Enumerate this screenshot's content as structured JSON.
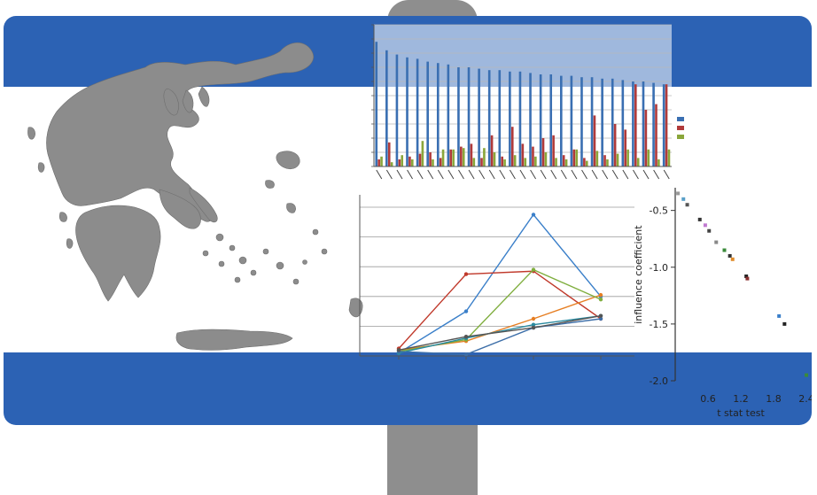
{
  "sign": {
    "colors": {
      "blue": "#2c62b4",
      "white": "#ffffff",
      "pole": "#8e8e8e",
      "land": "#8c8c8c"
    },
    "map_icon": "greece-map-icon"
  },
  "bar_chart": {
    "type": "bar",
    "grid": true,
    "legend_position": "right",
    "legend": [
      "",
      "",
      ""
    ],
    "series_colors": [
      "#3a6fb2",
      "#b03a3a",
      "#8aa63a"
    ],
    "ylim": [
      0,
      1
    ],
    "categories_count": 29,
    "series": [
      {
        "values": [
          0.88,
          0.82,
          0.79,
          0.77,
          0.76,
          0.74,
          0.73,
          0.72,
          0.7,
          0.7,
          0.69,
          0.68,
          0.68,
          0.67,
          0.67,
          0.66,
          0.65,
          0.65,
          0.64,
          0.64,
          0.63,
          0.63,
          0.62,
          0.62,
          0.61,
          0.6,
          0.6,
          0.59,
          0.58
        ]
      },
      {
        "values": [
          0.05,
          0.17,
          0.05,
          0.07,
          0.09,
          0.1,
          0.06,
          0.12,
          0.14,
          0.16,
          0.06,
          0.22,
          0.07,
          0.28,
          0.16,
          0.14,
          0.2,
          0.22,
          0.08,
          0.12,
          0.06,
          0.36,
          0.08,
          0.3,
          0.26,
          0.58,
          0.4,
          0.44,
          0.58
        ]
      },
      {
        "values": [
          0.07,
          0.03,
          0.08,
          0.05,
          0.18,
          0.05,
          0.12,
          0.12,
          0.13,
          0.06,
          0.13,
          0.1,
          0.05,
          0.08,
          0.06,
          0.07,
          0.1,
          0.06,
          0.05,
          0.12,
          0.04,
          0.11,
          0.05,
          0.09,
          0.12,
          0.06,
          0.12,
          0.05,
          0.12
        ]
      }
    ]
  },
  "line_chart": {
    "type": "line",
    "grid": true,
    "x_points": 4,
    "ylim": [
      0,
      1
    ],
    "series": [
      {
        "color": "#3a7fc9",
        "values": [
          0.02,
          0.3,
          0.95,
          0.4
        ]
      },
      {
        "color": "#c0392b",
        "values": [
          0.05,
          0.55,
          0.57,
          0.25
        ]
      },
      {
        "color": "#e67e22",
        "values": [
          0.04,
          0.1,
          0.25,
          0.41
        ]
      },
      {
        "color": "#7fae3e",
        "values": [
          0.03,
          0.11,
          0.58,
          0.38
        ]
      },
      {
        "color": "#2a8aa0",
        "values": [
          0.02,
          0.12,
          0.21,
          0.27
        ]
      },
      {
        "color": "#3c6ea8",
        "values": [
          0.03,
          0.01,
          0.19,
          0.25
        ]
      },
      {
        "color": "#555555",
        "values": [
          0.04,
          0.13,
          0.19,
          0.27
        ]
      }
    ]
  },
  "scatter_chart": {
    "type": "scatter",
    "ylabel": "influence coefficient",
    "xlabel": "t stat test",
    "yticks": [
      "-0.5",
      "-1.0",
      "-1.5",
      "-2.0"
    ],
    "xticks": [
      "0.6",
      "1.2",
      "1.8",
      "2.4"
    ],
    "xlim": [
      0,
      2.4
    ],
    "ylim": [
      -2.0,
      -0.3
    ],
    "points": [
      {
        "x": 0.05,
        "y": -0.35,
        "color": "#999999"
      },
      {
        "x": 0.15,
        "y": -0.4,
        "color": "#5aa0c8"
      },
      {
        "x": 0.22,
        "y": -0.45,
        "color": "#555555"
      },
      {
        "x": 0.45,
        "y": -0.58,
        "color": "#333333"
      },
      {
        "x": 0.55,
        "y": -0.63,
        "color": "#c07ad0"
      },
      {
        "x": 0.62,
        "y": -0.68,
        "color": "#444444"
      },
      {
        "x": 0.75,
        "y": -0.78,
        "color": "#888888"
      },
      {
        "x": 0.9,
        "y": -0.85,
        "color": "#3a8a3a"
      },
      {
        "x": 1.0,
        "y": -0.9,
        "color": "#333333"
      },
      {
        "x": 1.05,
        "y": -0.93,
        "color": "#e08b2a"
      },
      {
        "x": 1.3,
        "y": -1.08,
        "color": "#222222"
      },
      {
        "x": 1.32,
        "y": -1.1,
        "color": "#8a3030"
      },
      {
        "x": 1.9,
        "y": -1.43,
        "color": "#3a7fc9"
      },
      {
        "x": 2.0,
        "y": -1.5,
        "color": "#222222"
      },
      {
        "x": 2.4,
        "y": -1.95,
        "color": "#3a8a3a"
      }
    ]
  }
}
